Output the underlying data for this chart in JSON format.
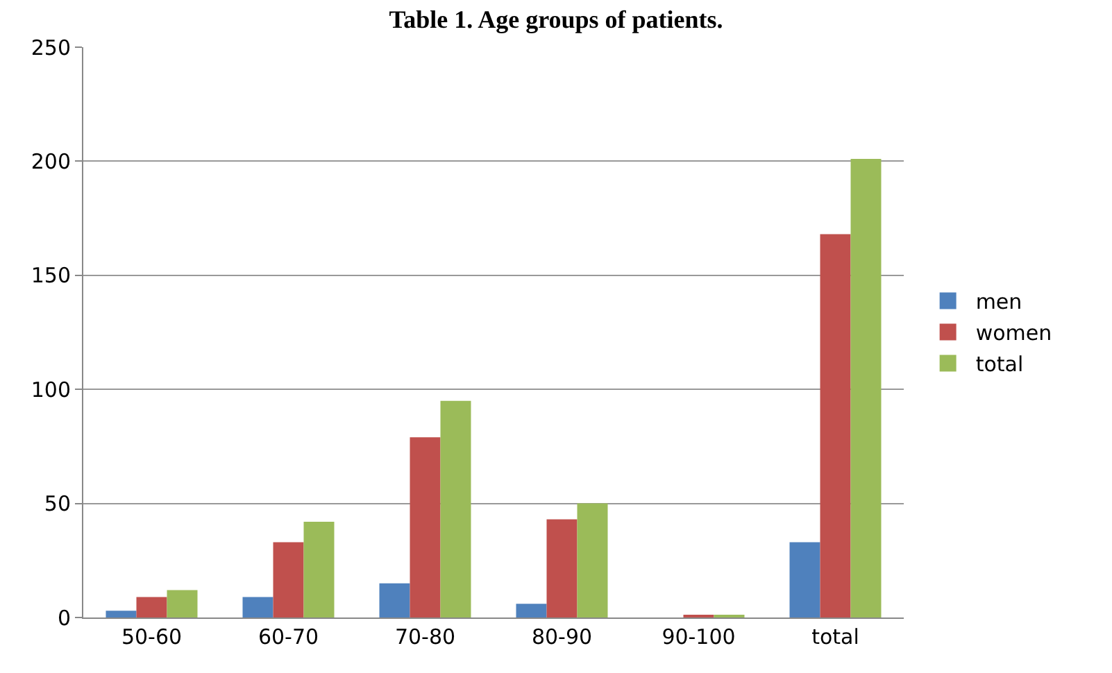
{
  "chart_data": {
    "type": "bar",
    "title": "Table 1. Age groups of patients.",
    "categories": [
      "50-60",
      "60-70",
      "70-80",
      "80-90",
      "90-100",
      "total"
    ],
    "series": [
      {
        "name": "men",
        "color": "#4f81bd",
        "values": [
          3,
          9,
          15,
          6,
          0,
          33
        ]
      },
      {
        "name": "women",
        "color": "#c0504d",
        "values": [
          9,
          33,
          79,
          43,
          1,
          168
        ]
      },
      {
        "name": "total",
        "color": "#9bbb59",
        "values": [
          12,
          42,
          95,
          50,
          1,
          201
        ]
      }
    ],
    "ylim": [
      0,
      250
    ],
    "yticks": [
      0,
      50,
      100,
      150,
      200,
      250
    ],
    "grid": "y",
    "legend": "right"
  }
}
